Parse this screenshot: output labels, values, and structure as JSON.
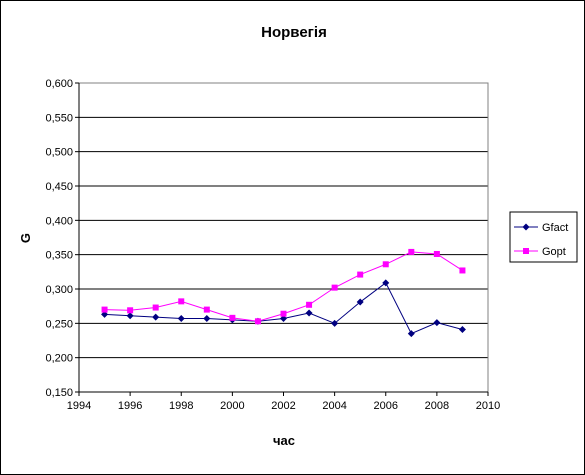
{
  "chart_data": {
    "type": "line",
    "title": "Норвегія",
    "xlabel": "час",
    "ylabel": "G",
    "xlim": [
      1994,
      2010
    ],
    "ylim": [
      0.15,
      0.6
    ],
    "x_ticks": [
      "1994",
      "1996",
      "1998",
      "2000",
      "2002",
      "2004",
      "2006",
      "2008",
      "2010"
    ],
    "y_ticks": [
      "0,150",
      "0,200",
      "0,250",
      "0,300",
      "0,350",
      "0,400",
      "0,450",
      "0,500",
      "0,550",
      "0,600"
    ],
    "grid": "horizontal",
    "legend_position": "right",
    "x": [
      1995,
      1996,
      1997,
      1998,
      1999,
      2000,
      2001,
      2002,
      2003,
      2004,
      2005,
      2006,
      2007,
      2008,
      2009
    ],
    "series": [
      {
        "name": "Gfact",
        "color": "#000080",
        "marker": "diamond",
        "values": [
          0.263,
          0.261,
          0.259,
          0.257,
          0.257,
          0.255,
          0.253,
          0.257,
          0.265,
          0.25,
          0.281,
          0.309,
          0.235,
          0.251,
          0.241
        ]
      },
      {
        "name": "Gopt",
        "color": "#ff00ff",
        "marker": "square",
        "values": [
          0.27,
          0.269,
          0.273,
          0.282,
          0.27,
          0.258,
          0.253,
          0.264,
          0.277,
          0.302,
          0.321,
          0.336,
          0.354,
          0.351,
          0.327
        ]
      }
    ]
  }
}
